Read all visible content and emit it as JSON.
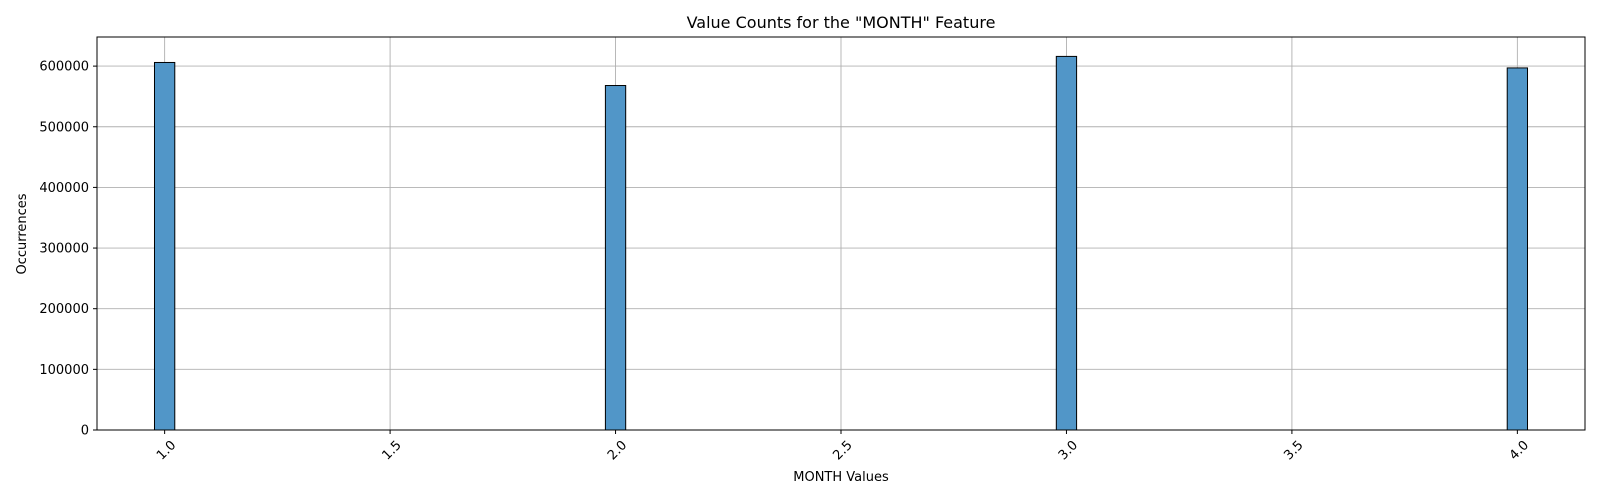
{
  "chart_data": {
    "type": "bar",
    "title": "Value Counts for the \"MONTH\" Feature",
    "xlabel": "MONTH Values",
    "ylabel": "Occurrences",
    "x": [
      1.0,
      2.0,
      3.0,
      4.0
    ],
    "values": [
      606000,
      568000,
      616000,
      597000
    ],
    "bin_width": 0.045,
    "xlim": [
      0.85,
      4.15
    ],
    "ylim": [
      0,
      648000
    ],
    "xticks": [
      1.0,
      1.5,
      2.0,
      2.5,
      3.0,
      3.5,
      4.0
    ],
    "xtick_labels": [
      "1.0",
      "1.5",
      "2.0",
      "2.5",
      "3.0",
      "3.5",
      "4.0"
    ],
    "yticks": [
      0,
      100000,
      200000,
      300000,
      400000,
      500000,
      600000
    ],
    "ytick_labels": [
      "0",
      "100000",
      "200000",
      "300000",
      "400000",
      "500000",
      "600000"
    ],
    "grid": true,
    "legend": "none",
    "bar_color": "#5196c8",
    "bar_edge_color": "#000000",
    "grid_color": "#b0b0b0"
  }
}
